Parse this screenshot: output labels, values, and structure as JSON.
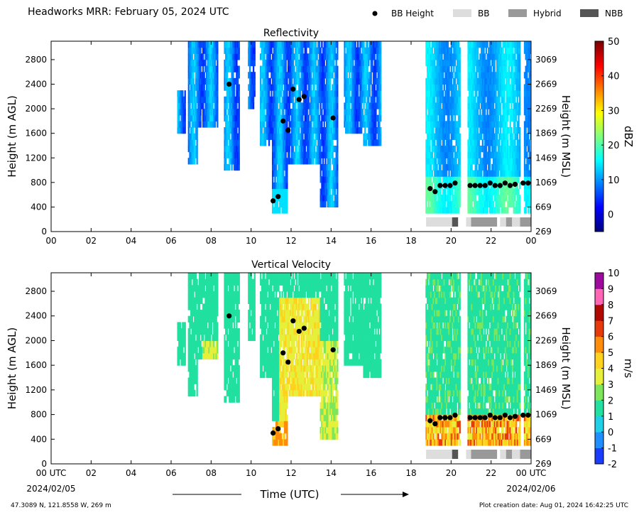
{
  "header": {
    "title": "Headworks MRR:  February 05, 2024 UTC"
  },
  "legend": {
    "placement": "top-right",
    "items": [
      {
        "label": "BB Height",
        "type": "marker",
        "color": "#000000"
      },
      {
        "label": "BB",
        "type": "patch",
        "color": "#dddddd"
      },
      {
        "label": "Hybrid",
        "type": "patch",
        "color": "#999999"
      },
      {
        "label": "NBB",
        "type": "patch",
        "color": "#555555"
      }
    ]
  },
  "footer": {
    "location": "47.3089 N, 121.8558 W, 269 m",
    "creation": "Plot creation date: Aug 01, 2024 16:42:25 UTC",
    "xlabel": "Time (UTC)",
    "start_date": "2024/02/05",
    "end_date": "2024/02/06"
  },
  "chart_data": [
    {
      "type": "heatmap",
      "title": "Reflectivity",
      "ylabel": "Height (m AGL)",
      "ylabel_right": "Height (m MSL)",
      "xlim": [
        0,
        24
      ],
      "ylim": [
        0,
        3100
      ],
      "x_ticks": [
        "00",
        "02",
        "04",
        "06",
        "08",
        "10",
        "12",
        "14",
        "16",
        "18",
        "20",
        "22",
        "00"
      ],
      "y_ticks": [
        0,
        400,
        800,
        1200,
        1600,
        2000,
        2400,
        2800
      ],
      "y_ticks_right": [
        269,
        669,
        1069,
        1469,
        1869,
        2269,
        2669,
        3069
      ],
      "colorbar": {
        "label": "dBZ",
        "min": -5,
        "max": 50,
        "ticks": [
          "0",
          "10",
          "20",
          "30",
          "40",
          "50"
        ],
        "tick_values": [
          0,
          10,
          20,
          30,
          40,
          50
        ],
        "colormap": "jet"
      },
      "bb_height": [
        {
          "time": 8.9,
          "height": 2400
        },
        {
          "time": 11.1,
          "height": 500
        },
        {
          "time": 11.35,
          "height": 570
        },
        {
          "time": 11.6,
          "height": 1800
        },
        {
          "time": 11.85,
          "height": 1650
        },
        {
          "time": 12.1,
          "height": 2320
        },
        {
          "time": 12.4,
          "height": 2150
        },
        {
          "time": 12.65,
          "height": 2200
        },
        {
          "time": 14.1,
          "height": 1850
        },
        {
          "time": 18.95,
          "height": 700
        },
        {
          "time": 19.2,
          "height": 650
        },
        {
          "time": 19.45,
          "height": 750
        },
        {
          "time": 19.7,
          "height": 750
        },
        {
          "time": 19.95,
          "height": 750
        },
        {
          "time": 20.2,
          "height": 790
        },
        {
          "time": 20.95,
          "height": 750
        },
        {
          "time": 21.2,
          "height": 750
        },
        {
          "time": 21.45,
          "height": 750
        },
        {
          "time": 21.7,
          "height": 750
        },
        {
          "time": 21.95,
          "height": 790
        },
        {
          "time": 22.2,
          "height": 750
        },
        {
          "time": 22.45,
          "height": 750
        },
        {
          "time": 22.7,
          "height": 790
        },
        {
          "time": 22.95,
          "height": 750
        },
        {
          "time": 23.2,
          "height": 770
        },
        {
          "time": 23.6,
          "height": 790
        },
        {
          "time": 23.85,
          "height": 790
        }
      ],
      "bb_type_segments": [
        {
          "start": 18.75,
          "end": 20.05,
          "class": "BB"
        },
        {
          "start": 20.05,
          "end": 20.35,
          "class": "NBB"
        },
        {
          "start": 20.75,
          "end": 21.0,
          "class": "BB"
        },
        {
          "start": 21.0,
          "end": 22.3,
          "class": "Hybrid"
        },
        {
          "start": 22.45,
          "end": 22.75,
          "class": "BB"
        },
        {
          "start": 22.75,
          "end": 23.05,
          "class": "Hybrid"
        },
        {
          "start": 23.05,
          "end": 23.45,
          "class": "BB"
        },
        {
          "start": 23.45,
          "end": 24.0,
          "class": "Hybrid"
        }
      ]
    },
    {
      "type": "heatmap",
      "title": "Vertical Velocity",
      "ylabel": "Height (m AGL)",
      "ylabel_right": "Height (m MSL)",
      "xlim": [
        0,
        24
      ],
      "ylim": [
        0,
        3100
      ],
      "x_ticks": [
        "00 UTC",
        "02",
        "04",
        "06",
        "08",
        "10",
        "12",
        "14",
        "16",
        "18",
        "20",
        "22",
        "00 UTC"
      ],
      "y_ticks": [
        0,
        400,
        800,
        1200,
        1600,
        2000,
        2400,
        2800
      ],
      "y_ticks_right": [
        269,
        669,
        1069,
        1469,
        1869,
        2269,
        2669,
        3069
      ],
      "colorbar": {
        "label": "m/s",
        "min": -2,
        "max": 10,
        "ticks": [
          "-2",
          "-1",
          "0",
          "1",
          "2",
          "3",
          "4",
          "5",
          "6",
          "7",
          "8",
          "9",
          "10"
        ],
        "tick_values": [
          -2,
          -1,
          0,
          1,
          2,
          3,
          4,
          5,
          6,
          7,
          8,
          9,
          10
        ],
        "colormap": "discrete"
      },
      "bb_height": "same as Reflectivity",
      "bb_type_segments": "same as Reflectivity"
    }
  ],
  "colors": {
    "bb": "#dddddd",
    "hybrid": "#999999",
    "nbb": "#555555",
    "marker": "#000000"
  }
}
